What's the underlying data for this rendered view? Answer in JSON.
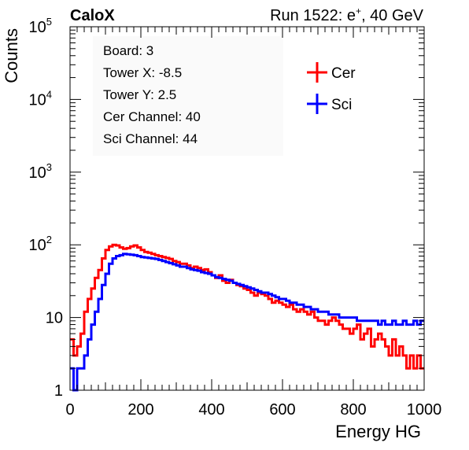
{
  "header": {
    "experiment": "CaloX",
    "run_label": "Run 1522: e",
    "run_sup": "+",
    "run_suffix": ", 40 GeV"
  },
  "info_box": {
    "lines": [
      "Board: 3",
      "Tower X: -8.5",
      "Tower Y: 2.5",
      "Cer Channel: 40",
      "Sci Channel: 44"
    ]
  },
  "chart_data": {
    "type": "line",
    "title": "",
    "xlabel": "Energy HG",
    "ylabel": "Counts",
    "xlim": [
      0,
      1000
    ],
    "ylim": [
      1,
      100000
    ],
    "y_scale": "log",
    "x_ticks": [
      "0",
      "200",
      "400",
      "600",
      "800",
      "1000"
    ],
    "y_ticks": [
      {
        "value": 1,
        "base": "1",
        "exp": ""
      },
      {
        "value": 10,
        "base": "10",
        "exp": ""
      },
      {
        "value": 100,
        "base": "10",
        "exp": "2"
      },
      {
        "value": 1000,
        "base": "10",
        "exp": "3"
      },
      {
        "value": 10000,
        "base": "10",
        "exp": "4"
      },
      {
        "value": 100000,
        "base": "10",
        "exp": "5"
      }
    ],
    "legend_position": "top-right",
    "series": [
      {
        "name": "Cer",
        "color": "#ff0000",
        "x": [
          5,
          15,
          25,
          35,
          45,
          55,
          65,
          75,
          85,
          95,
          105,
          115,
          125,
          135,
          145,
          155,
          165,
          175,
          185,
          195,
          205,
          215,
          225,
          235,
          245,
          255,
          265,
          275,
          285,
          295,
          305,
          315,
          325,
          335,
          345,
          355,
          365,
          375,
          385,
          395,
          405,
          415,
          425,
          435,
          445,
          455,
          465,
          475,
          485,
          495,
          505,
          515,
          525,
          535,
          545,
          555,
          565,
          575,
          585,
          595,
          605,
          615,
          625,
          635,
          645,
          655,
          665,
          675,
          685,
          695,
          705,
          715,
          725,
          735,
          745,
          755,
          765,
          775,
          785,
          795,
          805,
          815,
          825,
          835,
          845,
          855,
          865,
          875,
          885,
          895,
          905,
          915,
          925,
          935,
          945,
          955,
          965,
          975,
          985,
          995
        ],
        "y": [
          5,
          3,
          4,
          6,
          12,
          18,
          25,
          35,
          45,
          65,
          85,
          95,
          100,
          98,
          92,
          88,
          90,
          95,
          98,
          92,
          85,
          80,
          78,
          75,
          72,
          70,
          68,
          66,
          64,
          60,
          58,
          55,
          55,
          52,
          48,
          50,
          48,
          45,
          46,
          42,
          38,
          35,
          38,
          32,
          30,
          33,
          30,
          28,
          27,
          25,
          24,
          22,
          20,
          22,
          21,
          20,
          18,
          16,
          17,
          16,
          15,
          14,
          15,
          13,
          12,
          13,
          12,
          11,
          12,
          10,
          9,
          9,
          8,
          9,
          10,
          9,
          8,
          7,
          7,
          6,
          7,
          8,
          5,
          6,
          7,
          4,
          5,
          6,
          5,
          4,
          3,
          5,
          3,
          4,
          3,
          2,
          3,
          2,
          3,
          2
        ]
      },
      {
        "name": "Sci",
        "color": "#0000ff",
        "x": [
          5,
          15,
          25,
          35,
          45,
          55,
          65,
          75,
          85,
          95,
          105,
          115,
          125,
          135,
          145,
          155,
          165,
          175,
          185,
          195,
          205,
          215,
          225,
          235,
          245,
          255,
          265,
          275,
          285,
          295,
          305,
          315,
          325,
          335,
          345,
          355,
          365,
          375,
          385,
          395,
          405,
          415,
          425,
          435,
          445,
          455,
          465,
          475,
          485,
          495,
          505,
          515,
          525,
          535,
          545,
          555,
          565,
          575,
          585,
          595,
          605,
          615,
          625,
          635,
          645,
          655,
          665,
          675,
          685,
          695,
          705,
          715,
          725,
          735,
          745,
          755,
          765,
          775,
          785,
          795,
          805,
          815,
          825,
          835,
          845,
          855,
          865,
          875,
          885,
          895,
          905,
          915,
          925,
          935,
          945,
          955,
          965,
          975,
          985,
          995
        ],
        "y": [
          2,
          1,
          2,
          2,
          3,
          5,
          8,
          12,
          18,
          28,
          40,
          55,
          65,
          70,
          72,
          75,
          74,
          73,
          72,
          70,
          68,
          67,
          66,
          65,
          64,
          62,
          60,
          58,
          56,
          54,
          52,
          50,
          50,
          48,
          46,
          45,
          44,
          42,
          41,
          40,
          38,
          36,
          35,
          34,
          33,
          32,
          30,
          29,
          28,
          27,
          26,
          25,
          24,
          23,
          22,
          22,
          21,
          20,
          19,
          18,
          18,
          17,
          16,
          16,
          15,
          15,
          14,
          14,
          13,
          13,
          12,
          12,
          12,
          11,
          11,
          11,
          10,
          10,
          10,
          10,
          10,
          9,
          9,
          9,
          9,
          9,
          9,
          8,
          9,
          8,
          8,
          9,
          8,
          8,
          9,
          8,
          8,
          9,
          8,
          9
        ]
      }
    ]
  }
}
